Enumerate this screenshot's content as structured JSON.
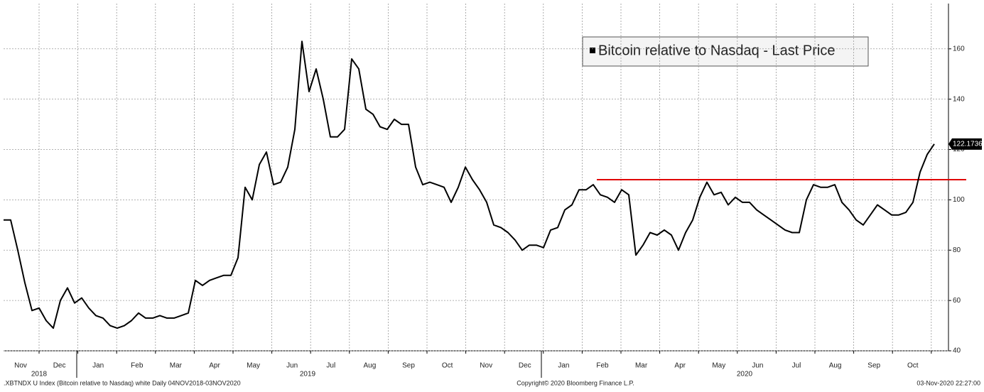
{
  "chart_data": {
    "type": "line",
    "x_tick_labels": [
      "Nov",
      "Dec",
      "Jan",
      "Feb",
      "Mar",
      "Apr",
      "May",
      "Jun",
      "Jul",
      "Aug",
      "Sep",
      "Oct",
      "Nov",
      "Dec",
      "Jan",
      "Feb",
      "Mar",
      "Apr",
      "May",
      "Jun",
      "Jul",
      "Aug",
      "Sep",
      "Oct"
    ],
    "year_labels": [
      "2018",
      "2019",
      "2020"
    ],
    "series": [
      {
        "name": "Bitcoin relative to Nasdaq - Last Price",
        "color": "#000000",
        "values": [
          92,
          92,
          80,
          67,
          56,
          57,
          52,
          49,
          60,
          65,
          59,
          61,
          57,
          54,
          53,
          50,
          49,
          50,
          52,
          55,
          53,
          53,
          54,
          53,
          53,
          54,
          55,
          68,
          66,
          68,
          69,
          70,
          70,
          77,
          105,
          100,
          114,
          119,
          106,
          107,
          113,
          128,
          163,
          143,
          152,
          140,
          125,
          125,
          128,
          156,
          152,
          136,
          134,
          129,
          128,
          132,
          130,
          130,
          113,
          106,
          107,
          106,
          105,
          99,
          105,
          113,
          108,
          104,
          99,
          90,
          89,
          87,
          84,
          80,
          82,
          82,
          81,
          88,
          89,
          96,
          98,
          104,
          104,
          106,
          102,
          101,
          99,
          104,
          102,
          78,
          82,
          87,
          86,
          88,
          86,
          80,
          87,
          92,
          101,
          107,
          102,
          103,
          98,
          101,
          99,
          99,
          96,
          94,
          92,
          90,
          88,
          87,
          87,
          100,
          106,
          105,
          105,
          106,
          99,
          96,
          92,
          90,
          94,
          98,
          96,
          94,
          94,
          95,
          99,
          111,
          118,
          122.1736
        ],
        "last_value_label": "122.1736"
      }
    ],
    "reference_line": {
      "value": 108,
      "color": "#e00000"
    },
    "ylim": [
      40,
      178
    ],
    "yticks": [
      40,
      60,
      80,
      100,
      120,
      140,
      160
    ],
    "grid": true,
    "footer_left": ".XBTNDX U Index (Bitcoin relative to Nasdaq) white  Daily 04NOV2018-03NOV2020",
    "footer_center": "Copyright© 2020 Bloomberg Finance L.P.",
    "footer_right": "03-Nov-2020 22:27:00"
  }
}
